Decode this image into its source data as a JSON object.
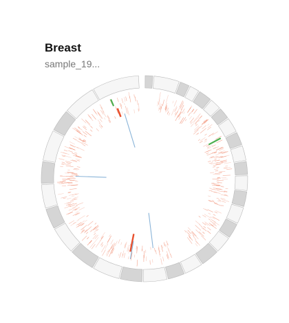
{
  "title": "Breast",
  "subtitle": "sample_19...",
  "colors": {
    "band_light": "#f6f6f6",
    "band_dark": "#d5d5d5",
    "band_stroke": "#b8b8b8",
    "point": "#f08a6e",
    "sv_green": "#4caf50",
    "sv_red": "#e8502e",
    "sv_blue": "#8ab4d8"
  },
  "chart_data": {
    "type": "circos",
    "title": "Breast",
    "subtitle": "sample_19...",
    "segments": [
      {
        "start": 0,
        "end": 5,
        "shade": "dark"
      },
      {
        "start": 5,
        "end": 20,
        "shade": "light"
      },
      {
        "start": 20,
        "end": 26,
        "shade": "dark"
      },
      {
        "start": 26,
        "end": 32,
        "shade": "light"
      },
      {
        "start": 32,
        "end": 40,
        "shade": "dark"
      },
      {
        "start": 40,
        "end": 47,
        "shade": "light"
      },
      {
        "start": 47,
        "end": 54,
        "shade": "dark"
      },
      {
        "start": 54,
        "end": 63,
        "shade": "light"
      },
      {
        "start": 63,
        "end": 71,
        "shade": "dark"
      },
      {
        "start": 71,
        "end": 80,
        "shade": "light"
      },
      {
        "start": 80,
        "end": 88,
        "shade": "dark"
      },
      {
        "start": 88,
        "end": 97,
        "shade": "light"
      },
      {
        "start": 97,
        "end": 106,
        "shade": "dark"
      },
      {
        "start": 106,
        "end": 116,
        "shade": "light"
      },
      {
        "start": 116,
        "end": 125,
        "shade": "dark"
      },
      {
        "start": 125,
        "end": 135,
        "shade": "light"
      },
      {
        "start": 135,
        "end": 146,
        "shade": "dark"
      },
      {
        "start": 146,
        "end": 157,
        "shade": "light"
      },
      {
        "start": 157,
        "end": 167,
        "shade": "dark"
      },
      {
        "start": 167,
        "end": 181,
        "shade": "light"
      },
      {
        "start": 181,
        "end": 194,
        "shade": "dark"
      },
      {
        "start": 194,
        "end": 210,
        "shade": "light"
      },
      {
        "start": 210,
        "end": 225,
        "shade": "dark"
      },
      {
        "start": 225,
        "end": 241,
        "shade": "light"
      },
      {
        "start": 241,
        "end": 253,
        "shade": "dark"
      },
      {
        "start": 253,
        "end": 267,
        "shade": "light"
      },
      {
        "start": 267,
        "end": 280,
        "shade": "dark"
      },
      {
        "start": 280,
        "end": 298,
        "shade": "light"
      },
      {
        "start": 298,
        "end": 311,
        "shade": "dark"
      },
      {
        "start": 311,
        "end": 330,
        "shade": "light"
      },
      {
        "start": 330,
        "end": 357,
        "shade": "light"
      }
    ],
    "mutation_density": [
      {
        "start": 10,
        "end": 145,
        "density": 0.85
      },
      {
        "start": 160,
        "end": 205,
        "density": 0.6
      },
      {
        "start": 205,
        "end": 330,
        "density": 0.8
      },
      {
        "start": 334,
        "end": 356,
        "density": 0.5
      }
    ],
    "structural_variants": [
      {
        "angle": 337,
        "inner": 0.87,
        "outer": 0.95,
        "type": "green"
      },
      {
        "angle": 339,
        "inner": 0.73,
        "outer": 0.83,
        "type": "red"
      },
      {
        "angle": 343,
        "inner": 0.36,
        "outer": 0.75,
        "type": "blue"
      },
      {
        "angle": 62,
        "inner": 0.8,
        "outer": 0.95,
        "type": "green"
      },
      {
        "angle": 272,
        "inner": 0.42,
        "outer": 0.76,
        "type": "blue"
      },
      {
        "angle": 173,
        "inner": 0.38,
        "outer": 0.77,
        "type": "blue"
      },
      {
        "angle": 191,
        "inner": 0.62,
        "outer": 0.82,
        "type": "red"
      },
      {
        "angle": 190,
        "inner": 0.7,
        "outer": 0.9,
        "type": "blue"
      }
    ]
  }
}
